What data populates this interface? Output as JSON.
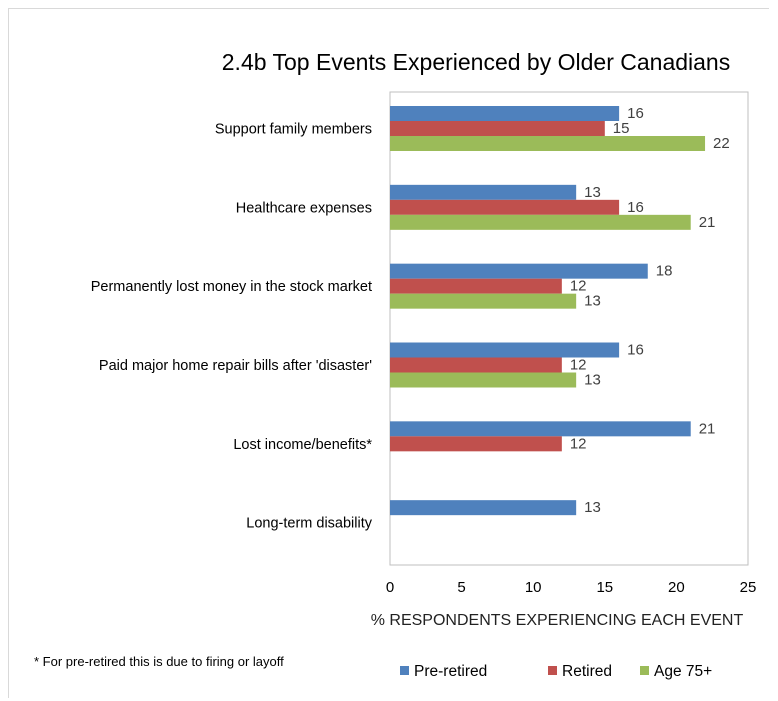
{
  "chart_data": {
    "type": "bar",
    "orientation": "horizontal",
    "title": "2.4b  Top Events Experienced by Older Canadians",
    "xlabel": "% RESPONDENTS EXPERIENCING EACH EVENT",
    "xlim": [
      0,
      25
    ],
    "xticks": [
      "0",
      "5",
      "10",
      "15",
      "20",
      "25"
    ],
    "categories": [
      "Support family members",
      "Healthcare expenses",
      "Permanently lost money in the stock market",
      "Paid major home repair bills after 'disaster'",
      "Lost income/benefits*",
      "Long-term disability"
    ],
    "series": [
      {
        "name": "Pre-retired",
        "color": "#4f81bd",
        "values": [
          16,
          13,
          18,
          16,
          21,
          13
        ]
      },
      {
        "name": "Retired",
        "color": "#c0504d",
        "values": [
          15,
          16,
          12,
          12,
          12,
          null
        ]
      },
      {
        "name": "Age 75+",
        "color": "#9bbb59",
        "values": [
          22,
          21,
          13,
          13,
          null,
          null
        ]
      }
    ],
    "grid": false,
    "legend_position": "bottom-right",
    "footnote": "* For pre-retired this is due to firing or layoff"
  }
}
